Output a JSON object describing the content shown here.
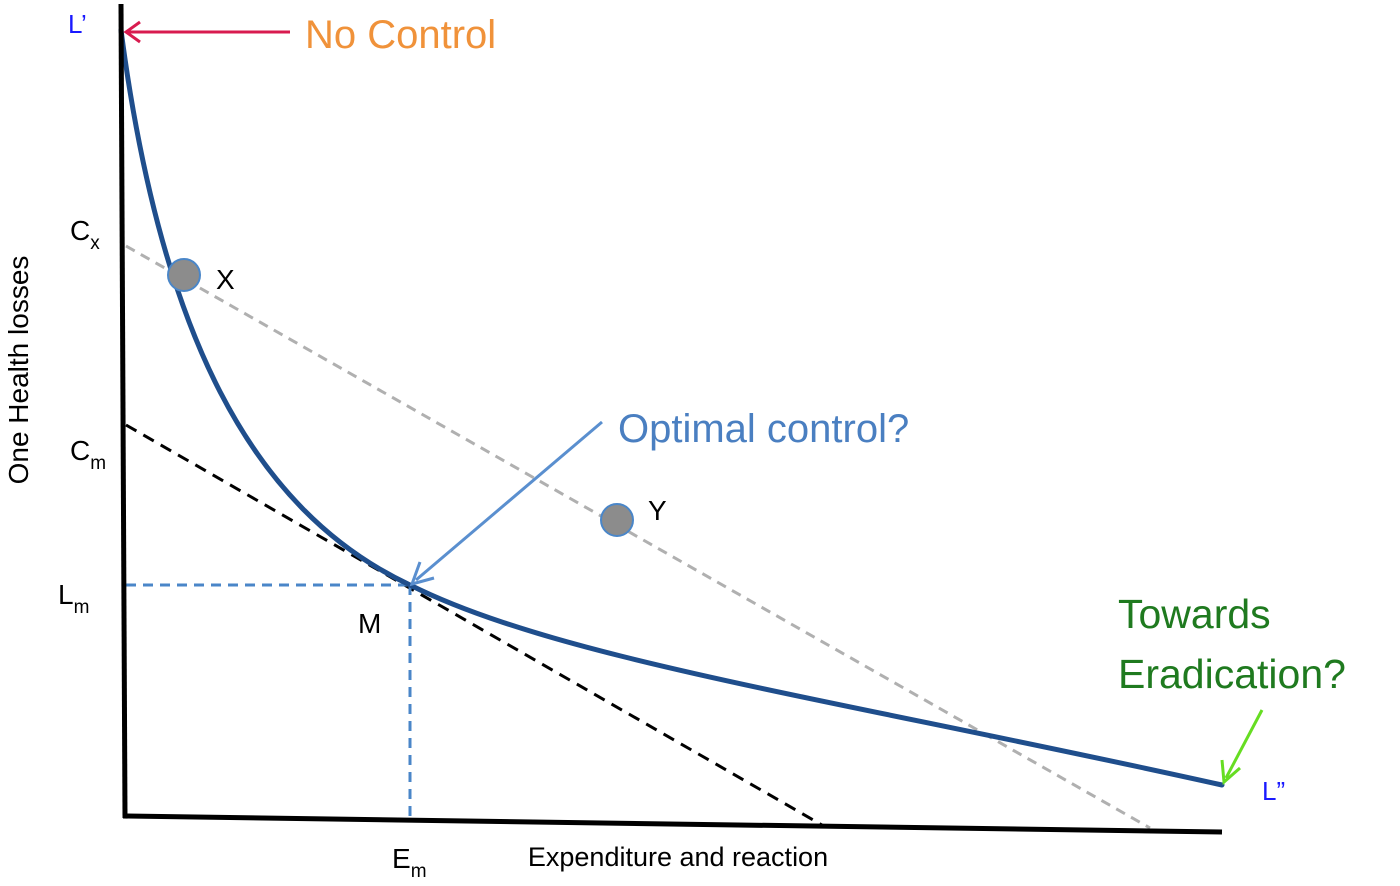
{
  "axes": {
    "y_label": "One Health losses",
    "x_label": "Expenditure and reaction"
  },
  "curve_labels": {
    "start": "L’",
    "end": "L”"
  },
  "y_ticks": [
    {
      "main": "C",
      "sub": "x"
    },
    {
      "main": "C",
      "sub": "m"
    },
    {
      "main": "L",
      "sub": "m"
    }
  ],
  "x_ticks": [
    {
      "main": "E",
      "sub": "m"
    }
  ],
  "points": {
    "x": "X",
    "y": "Y",
    "m": "M"
  },
  "annotations": {
    "no_control": "No Control",
    "optimal_control": "Optimal control?",
    "eradication_line1": "Towards",
    "eradication_line2": "Eradication?"
  },
  "colors": {
    "axis": "#000000",
    "curve": "#1f4e8c",
    "point_fill": "#8c8c8c",
    "point_stroke": "#4a86c8",
    "gray_dashed": "#b0b0b0",
    "black_dashed": "#000000",
    "guide_dashed": "#4a86c8",
    "no_control_text": "#f0923a",
    "no_control_arrow": "#d81b4f",
    "optimal_text": "#4a7fc1",
    "optimal_arrow": "#5a8fcf",
    "eradication_text": "#1f7a1f",
    "eradication_arrow": "#66dd22",
    "curve_label_text": "#1a1aff"
  }
}
